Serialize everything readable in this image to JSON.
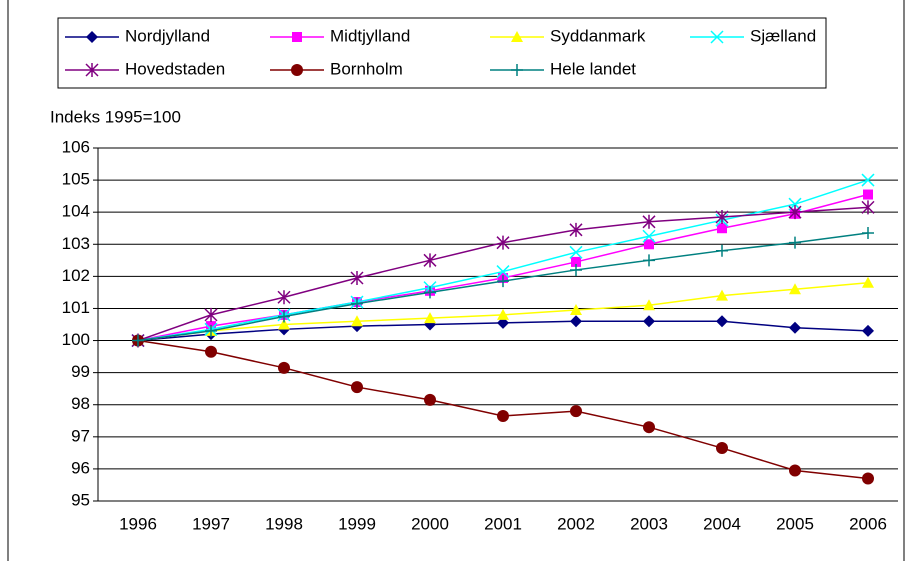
{
  "chart_data": {
    "type": "line",
    "y_label": "Indeks 1995=100",
    "categories": [
      "1996",
      "1997",
      "1998",
      "1999",
      "2000",
      "2001",
      "2002",
      "2003",
      "2004",
      "2005",
      "2006"
    ],
    "ylim": [
      95,
      106
    ],
    "yticks": [
      95,
      96,
      97,
      98,
      99,
      100,
      101,
      102,
      103,
      104,
      105,
      106
    ],
    "grid": true,
    "legend": "top",
    "series": [
      {
        "name": "Nordjylland",
        "color": "#000080",
        "marker": "diamond",
        "values": [
          100,
          100.2,
          100.35,
          100.45,
          100.5,
          100.55,
          100.6,
          100.6,
          100.6,
          100.4,
          100.3
        ]
      },
      {
        "name": "Midtjylland",
        "color": "#ff00ff",
        "marker": "square",
        "values": [
          100,
          100.45,
          100.8,
          101.2,
          101.55,
          101.95,
          102.45,
          103.0,
          103.5,
          103.95,
          104.55
        ]
      },
      {
        "name": "Syddanmark",
        "color": "#ffff00",
        "marker": "triangle",
        "values": [
          100,
          100.3,
          100.5,
          100.6,
          100.7,
          100.8,
          100.95,
          101.1,
          101.4,
          101.6,
          101.8
        ]
      },
      {
        "name": "Sjælland",
        "color": "#00ffff",
        "marker": "x",
        "values": [
          100,
          100.35,
          100.8,
          101.2,
          101.65,
          102.15,
          102.75,
          103.25,
          103.75,
          104.25,
          105.0
        ]
      },
      {
        "name": "Hovedstaden",
        "color": "#800080",
        "marker": "star",
        "values": [
          100,
          100.8,
          101.35,
          101.95,
          102.5,
          103.05,
          103.45,
          103.7,
          103.85,
          104.0,
          104.15
        ]
      },
      {
        "name": "Bornholm",
        "color": "#800000",
        "marker": "circle",
        "values": [
          100,
          99.65,
          99.15,
          98.55,
          98.15,
          97.65,
          97.8,
          97.3,
          96.65,
          95.95,
          95.7
        ]
      },
      {
        "name": "Hele landet",
        "color": "#008080",
        "marker": "plus",
        "values": [
          100,
          100.3,
          100.75,
          101.15,
          101.5,
          101.85,
          102.2,
          102.5,
          102.8,
          103.05,
          103.35
        ]
      }
    ]
  }
}
